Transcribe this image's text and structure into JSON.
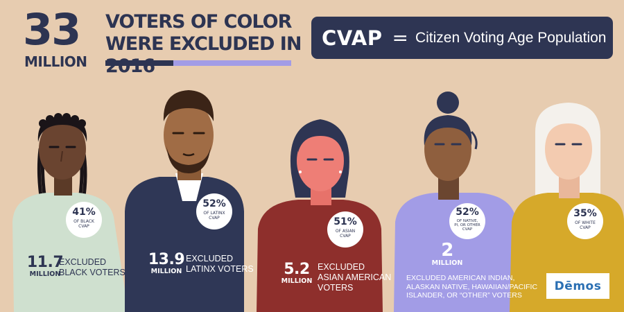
{
  "header": {
    "big_number": "33",
    "million": "MILLION",
    "headline_line1": "VOTERS OF COLOR",
    "headline_line2": "WERE EXCLUDED IN 2016"
  },
  "definition": {
    "abbr": "CVAP",
    "equals": "=",
    "text": "Citizen Voting Age Population"
  },
  "groups": [
    {
      "pct": "41%",
      "label1": "OF BLACK",
      "label2": "CVAP",
      "label3": "",
      "number": "11.7",
      "unit": "MILLION",
      "desc1": "EXCLUDED",
      "desc2": "BLACK VOTERS",
      "desc3": "",
      "desc4": ""
    },
    {
      "pct": "52%",
      "label1": "OF LATINX",
      "label2": "CVAP",
      "label3": "",
      "number": "13.9",
      "unit": "MILLION",
      "desc1": "EXCLUDED",
      "desc2": "LATINX VOTERS",
      "desc3": "",
      "desc4": ""
    },
    {
      "pct": "51%",
      "label1": "OF ASIAN",
      "label2": "CVAP",
      "label3": "",
      "number": "5.2",
      "unit": "MILLION",
      "desc1": "EXCLUDED",
      "desc2": "ASIAN AMERICAN",
      "desc3": "VOTERS",
      "desc4": ""
    },
    {
      "pct": "52%",
      "label1": "OF NATIVE,",
      "label2": "PI, OR OTHER",
      "label3": "CVAP",
      "number": "2",
      "unit": "MILLION",
      "desc1": "EXCLUDED AMERICAN INDIAN,",
      "desc2": "ALASKAN NATIVE, HAWAIIAN/PACIFIC",
      "desc3": "ISLANDER, OR “OTHER” VOTERS",
      "desc4": ""
    },
    {
      "pct": "35%",
      "label1": "OF WHITE",
      "label2": "CVAP",
      "label3": "",
      "number": "",
      "unit": "",
      "desc1": "",
      "desc2": "",
      "desc3": "",
      "desc4": ""
    }
  ],
  "logo": {
    "text": "Dēmos"
  },
  "colors": {
    "background": "#e7ccb0",
    "navy": "#2d3452",
    "lavender": "#a29ce6",
    "mint": "#cfe0cf",
    "maroon": "#8e2f2c",
    "violet": "#a29ce6",
    "gold": "#d6a92a",
    "logo_blue": "#2a6fb3"
  },
  "icons": [
    "person-black-woman-icon",
    "person-latinx-man-icon",
    "person-asian-woman-icon",
    "person-native-woman-icon",
    "person-white-woman-icon"
  ]
}
